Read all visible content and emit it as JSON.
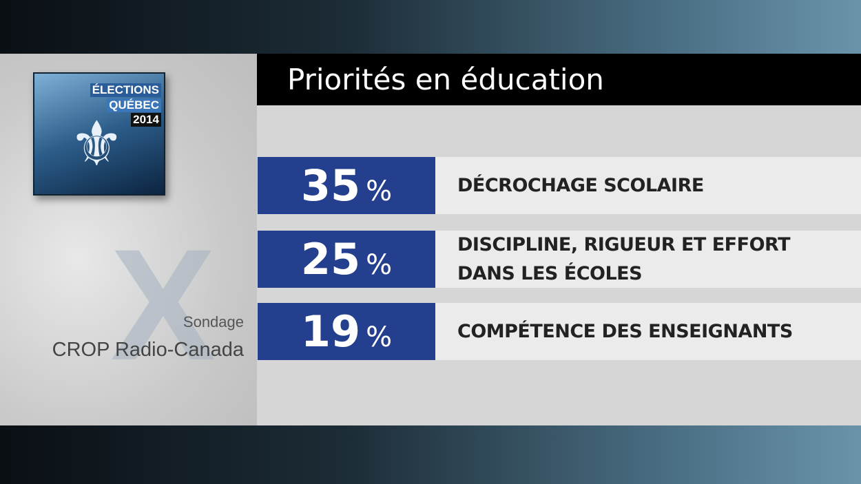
{
  "logo": {
    "line1": "ÉLECTIONS",
    "line2": "QUÉBEC",
    "year": "2014"
  },
  "title": "Priorités en éducation",
  "source": {
    "line1": "Sondage",
    "line2": "CROP Radio-Canada"
  },
  "rows": [
    {
      "value": 35,
      "unit": "%",
      "label_lines": [
        "DÉCROCHAGE SCOLAIRE"
      ]
    },
    {
      "value": 25,
      "unit": "%",
      "label_lines": [
        "DISCIPLINE, RIGUEUR ET EFFORT",
        "DANS LES ÉCOLES"
      ]
    },
    {
      "value": 19,
      "unit": "%",
      "label_lines": [
        "COMPÉTENCE DES ENSEIGNANTS"
      ]
    }
  ]
}
